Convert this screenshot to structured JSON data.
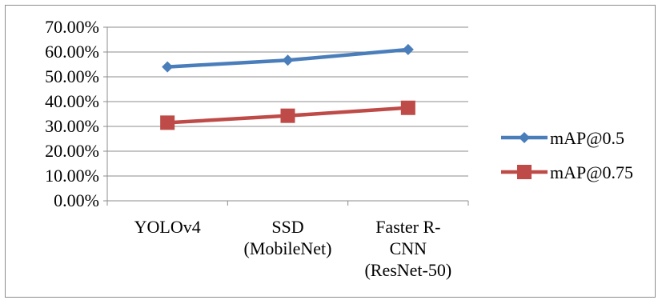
{
  "chart_data": {
    "type": "line",
    "categories": [
      [
        "YOLOv4"
      ],
      [
        "SSD",
        "(MobileNet)"
      ],
      [
        "Faster R-",
        "CNN",
        "(ResNet-50)"
      ]
    ],
    "series": [
      {
        "name": "mAP@0.5",
        "values": [
          0.54,
          0.567,
          0.61
        ],
        "color": "#4a7ebb",
        "marker": "diamond"
      },
      {
        "name": "mAP@0.75",
        "values": [
          0.315,
          0.343,
          0.375
        ],
        "color": "#be4b48",
        "marker": "square"
      }
    ],
    "y_ticks": [
      "0.00%",
      "10.00%",
      "20.00%",
      "30.00%",
      "40.00%",
      "50.00%",
      "60.00%",
      "70.00%"
    ],
    "ylim": [
      0,
      0.7
    ],
    "grid": true,
    "legend_position": "right"
  }
}
